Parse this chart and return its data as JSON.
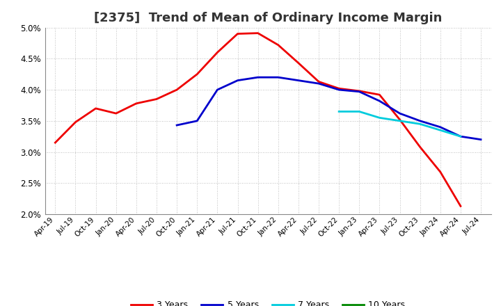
{
  "title": "[2375]  Trend of Mean of Ordinary Income Margin",
  "ylim": [
    0.02,
    0.05
  ],
  "yticks": [
    0.02,
    0.025,
    0.03,
    0.035,
    0.04,
    0.045,
    0.05
  ],
  "x_labels": [
    "Apr-19",
    "Jul-19",
    "Oct-19",
    "Jan-20",
    "Apr-20",
    "Jul-20",
    "Oct-20",
    "Jan-21",
    "Apr-21",
    "Jul-21",
    "Oct-21",
    "Jan-22",
    "Apr-22",
    "Jul-22",
    "Oct-22",
    "Jan-23",
    "Apr-23",
    "Jul-23",
    "Oct-23",
    "Jan-24",
    "Apr-24",
    "Jul-24"
  ],
  "series": {
    "3 Years": {
      "color": "#ee0000",
      "data_x": [
        0,
        1,
        2,
        3,
        4,
        5,
        6,
        7,
        8,
        9,
        10,
        11,
        12,
        13,
        14,
        15,
        16,
        17,
        18,
        19,
        20
      ],
      "data_y": [
        0.0315,
        0.0348,
        0.037,
        0.0362,
        0.0378,
        0.0385,
        0.04,
        0.0425,
        0.046,
        0.049,
        0.0491,
        0.0472,
        0.0443,
        0.0413,
        0.0402,
        0.0398,
        0.0392,
        0.0352,
        0.0308,
        0.0268,
        0.0213
      ]
    },
    "5 Years": {
      "color": "#0000cc",
      "data_x": [
        6,
        7,
        8,
        9,
        10,
        11,
        12,
        13,
        14,
        15,
        16,
        17,
        18,
        19,
        20,
        21
      ],
      "data_y": [
        0.0343,
        0.035,
        0.04,
        0.0415,
        0.042,
        0.042,
        0.0415,
        0.041,
        0.04,
        0.0397,
        0.0382,
        0.0362,
        0.035,
        0.034,
        0.0325,
        0.032
      ]
    },
    "7 Years": {
      "color": "#00ccdd",
      "data_x": [
        14,
        15,
        16,
        17,
        18,
        19,
        20
      ],
      "data_y": [
        0.0365,
        0.0365,
        0.0355,
        0.035,
        0.0345,
        0.0335,
        0.0325
      ]
    },
    "10 Years": {
      "color": "#008800",
      "data_x": [],
      "data_y": []
    }
  },
  "background_color": "#ffffff",
  "grid_color": "#aaaaaa",
  "title_fontsize": 13,
  "linewidth": 2.0
}
